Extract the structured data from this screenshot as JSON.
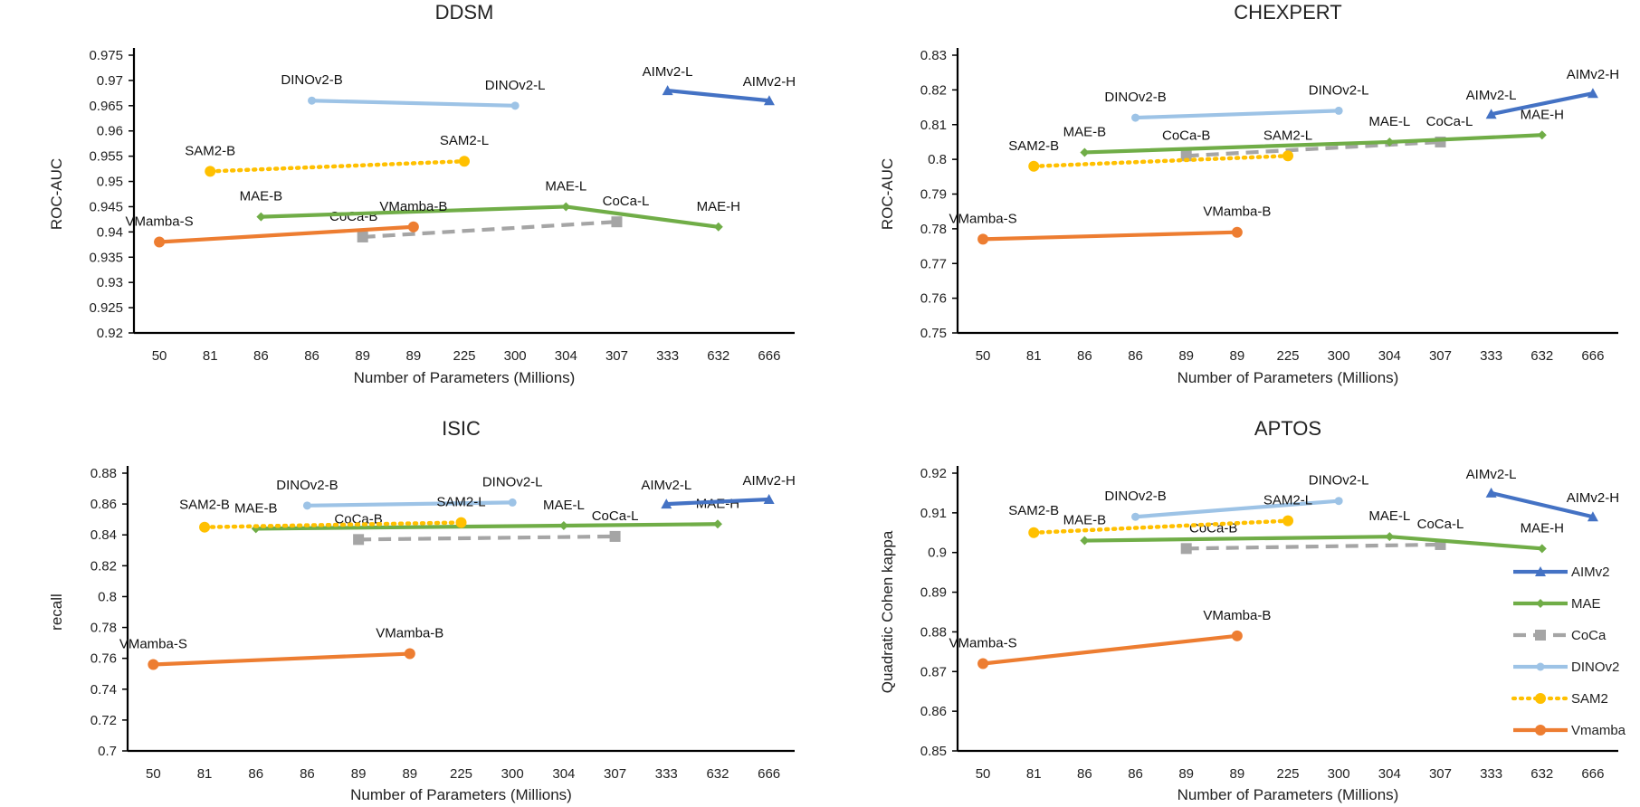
{
  "categories": [
    "50",
    "81",
    "86",
    "86",
    "89",
    "89",
    "225",
    "300",
    "304",
    "307",
    "333",
    "632",
    "666"
  ],
  "series_styles": {
    "AIMv2": {
      "color": "#4472C4",
      "marker": "triangle",
      "dash": "solid"
    },
    "MAE": {
      "color": "#70AD47",
      "marker": "diamond",
      "dash": "solid"
    },
    "CoCa": {
      "color": "#A5A5A5",
      "marker": "square",
      "dash": "dash"
    },
    "DINOv2": {
      "color": "#9DC3E6",
      "marker": "circle",
      "dash": "solid"
    },
    "SAM2": {
      "color": "#FFC000",
      "marker": "circle",
      "dash": "dot"
    },
    "Vmamba": {
      "color": "#ED7D31",
      "marker": "circle",
      "dash": "solid"
    }
  },
  "legend": {
    "placement": "right",
    "entries": [
      "AIMv2",
      "MAE",
      "CoCa",
      "DINOv2",
      "SAM2",
      "Vmamba"
    ]
  },
  "chart_data": [
    {
      "type": "line",
      "title": "DDSM",
      "xlabel": "Number of Parameters (Millions)",
      "ylabel": "ROC-AUC",
      "ylim": [
        0.92,
        0.975
      ],
      "ystep": 0.005,
      "ytick_labels": [
        "0.92",
        "0.925",
        "0.93",
        "0.935",
        "0.94",
        "0.945",
        "0.95",
        "0.955",
        "0.96",
        "0.965",
        "0.97",
        "0.975"
      ],
      "grid": false,
      "series": [
        {
          "name": "AIMv2",
          "points": [
            {
              "x": "333",
              "y": 0.968,
              "label": "AIMv2-L"
            },
            {
              "x": "666",
              "y": 0.966,
              "label": "AIMv2-H"
            }
          ]
        },
        {
          "name": "MAE",
          "points": [
            {
              "x": "86",
              "y": 0.943,
              "label": "MAE-B"
            },
            {
              "x": "304",
              "y": 0.945,
              "label": "MAE-L"
            },
            {
              "x": "632",
              "y": 0.941,
              "label": "MAE-H"
            }
          ]
        },
        {
          "name": "CoCa",
          "points": [
            {
              "x": "89",
              "y": 0.939,
              "label": "CoCa-B"
            },
            {
              "x": "307",
              "y": 0.942,
              "label": "CoCa-L"
            }
          ]
        },
        {
          "name": "DINOv2",
          "points": [
            {
              "x": "86",
              "y": 0.966,
              "label": "DINOv2-B"
            },
            {
              "x": "300",
              "y": 0.965,
              "label": "DINOv2-L"
            }
          ]
        },
        {
          "name": "SAM2",
          "points": [
            {
              "x": "81",
              "y": 0.952,
              "label": "SAM2-B"
            },
            {
              "x": "225",
              "y": 0.954,
              "label": "SAM2-L"
            }
          ]
        },
        {
          "name": "Vmamba",
          "points": [
            {
              "x": "50",
              "y": 0.938,
              "label": "VMamba-S"
            },
            {
              "x": "89",
              "y": 0.941,
              "label": "VMamba-B"
            }
          ]
        }
      ]
    },
    {
      "type": "line",
      "title": "CHEXPERT",
      "xlabel": "Number of Parameters (Millions)",
      "ylabel": "ROC-AUC",
      "ylim": [
        0.75,
        0.83
      ],
      "ystep": 0.01,
      "ytick_labels": [
        "0.75",
        "0.76",
        "0.77",
        "0.78",
        "0.79",
        "0.8",
        "0.81",
        "0.82",
        "0.83"
      ],
      "grid": false,
      "series": [
        {
          "name": "AIMv2",
          "points": [
            {
              "x": "333",
              "y": 0.813,
              "label": "AIMv2-L"
            },
            {
              "x": "666",
              "y": 0.819,
              "label": "AIMv2-H"
            }
          ]
        },
        {
          "name": "MAE",
          "points": [
            {
              "x": "86",
              "y": 0.802,
              "label": "MAE-B"
            },
            {
              "x": "304",
              "y": 0.805,
              "label": "MAE-L"
            },
            {
              "x": "632",
              "y": 0.807,
              "label": "MAE-H"
            }
          ]
        },
        {
          "name": "CoCa",
          "points": [
            {
              "x": "89",
              "y": 0.801,
              "label": "CoCa-B"
            },
            {
              "x": "307",
              "y": 0.805,
              "label": "CoCa-L"
            }
          ]
        },
        {
          "name": "DINOv2",
          "points": [
            {
              "x": "86",
              "y": 0.812,
              "label": "DINOv2-B"
            },
            {
              "x": "300",
              "y": 0.814,
              "label": "DINOv2-L"
            }
          ]
        },
        {
          "name": "SAM2",
          "points": [
            {
              "x": "81",
              "y": 0.798,
              "label": "SAM2-B"
            },
            {
              "x": "225",
              "y": 0.801,
              "label": "SAM2-L"
            }
          ]
        },
        {
          "name": "Vmamba",
          "points": [
            {
              "x": "50",
              "y": 0.777,
              "label": "VMamba-S"
            },
            {
              "x": "89",
              "y": 0.779,
              "label": "VMamba-B"
            }
          ]
        }
      ]
    },
    {
      "type": "line",
      "title": "ISIC",
      "xlabel": "Number of Parameters (Millions)",
      "ylabel": "recall",
      "ylim": [
        0.7,
        0.88
      ],
      "ystep": 0.02,
      "ytick_labels": [
        "0.7",
        "0.72",
        "0.74",
        "0.76",
        "0.78",
        "0.8",
        "0.82",
        "0.84",
        "0.86",
        "0.88"
      ],
      "grid": false,
      "series": [
        {
          "name": "AIMv2",
          "points": [
            {
              "x": "333",
              "y": 0.86,
              "label": "AIMv2-L"
            },
            {
              "x": "666",
              "y": 0.863,
              "label": "AIMv2-H"
            }
          ]
        },
        {
          "name": "MAE",
          "points": [
            {
              "x": "86",
              "y": 0.844,
              "label": "MAE-B"
            },
            {
              "x": "304",
              "y": 0.846,
              "label": "MAE-L"
            },
            {
              "x": "632",
              "y": 0.847,
              "label": "MAE-H"
            }
          ]
        },
        {
          "name": "CoCa",
          "points": [
            {
              "x": "89",
              "y": 0.837,
              "label": "CoCa-B"
            },
            {
              "x": "307",
              "y": 0.839,
              "label": "CoCa-L"
            }
          ]
        },
        {
          "name": "DINOv2",
          "points": [
            {
              "x": "86",
              "y": 0.859,
              "label": "DINOv2-B"
            },
            {
              "x": "300",
              "y": 0.861,
              "label": "DINOv2-L"
            }
          ]
        },
        {
          "name": "SAM2",
          "points": [
            {
              "x": "81",
              "y": 0.845,
              "label": "SAM2-B"
            },
            {
              "x": "225",
              "y": 0.848,
              "label": "SAM2-L"
            }
          ]
        },
        {
          "name": "Vmamba",
          "points": [
            {
              "x": "50",
              "y": 0.756,
              "label": "VMamba-S"
            },
            {
              "x": "89",
              "y": 0.763,
              "label": "VMamba-B"
            }
          ]
        }
      ]
    },
    {
      "type": "line",
      "title": "APTOS",
      "xlabel": "Number of Parameters (Millions)",
      "ylabel": "Quadratic Cohen kappa",
      "ylim": [
        0.85,
        0.92
      ],
      "ystep": 0.01,
      "ytick_labels": [
        "0.85",
        "0.86",
        "0.87",
        "0.88",
        "0.89",
        "0.9",
        "0.91",
        "0.92"
      ],
      "grid": false,
      "series": [
        {
          "name": "AIMv2",
          "points": [
            {
              "x": "333",
              "y": 0.915,
              "label": "AIMv2-L"
            },
            {
              "x": "666",
              "y": 0.909,
              "label": "AIMv2-H"
            }
          ]
        },
        {
          "name": "MAE",
          "points": [
            {
              "x": "86",
              "y": 0.903,
              "label": "MAE-B"
            },
            {
              "x": "304",
              "y": 0.904,
              "label": "MAE-L"
            },
            {
              "x": "632",
              "y": 0.901,
              "label": "MAE-H"
            }
          ]
        },
        {
          "name": "CoCa",
          "points": [
            {
              "x": "89",
              "y": 0.901,
              "label": "CoCa-B"
            },
            {
              "x": "307",
              "y": 0.902,
              "label": "CoCa-L"
            }
          ]
        },
        {
          "name": "DINOv2",
          "points": [
            {
              "x": "86",
              "y": 0.909,
              "label": "DINOv2-B"
            },
            {
              "x": "300",
              "y": 0.913,
              "label": "DINOv2-L"
            }
          ]
        },
        {
          "name": "SAM2",
          "points": [
            {
              "x": "81",
              "y": 0.905,
              "label": "SAM2-B"
            },
            {
              "x": "225",
              "y": 0.908,
              "label": "SAM2-L"
            }
          ]
        },
        {
          "name": "Vmamba",
          "points": [
            {
              "x": "50",
              "y": 0.872,
              "label": "VMamba-S"
            },
            {
              "x": "89",
              "y": 0.879,
              "label": "VMamba-B"
            }
          ]
        }
      ]
    }
  ]
}
